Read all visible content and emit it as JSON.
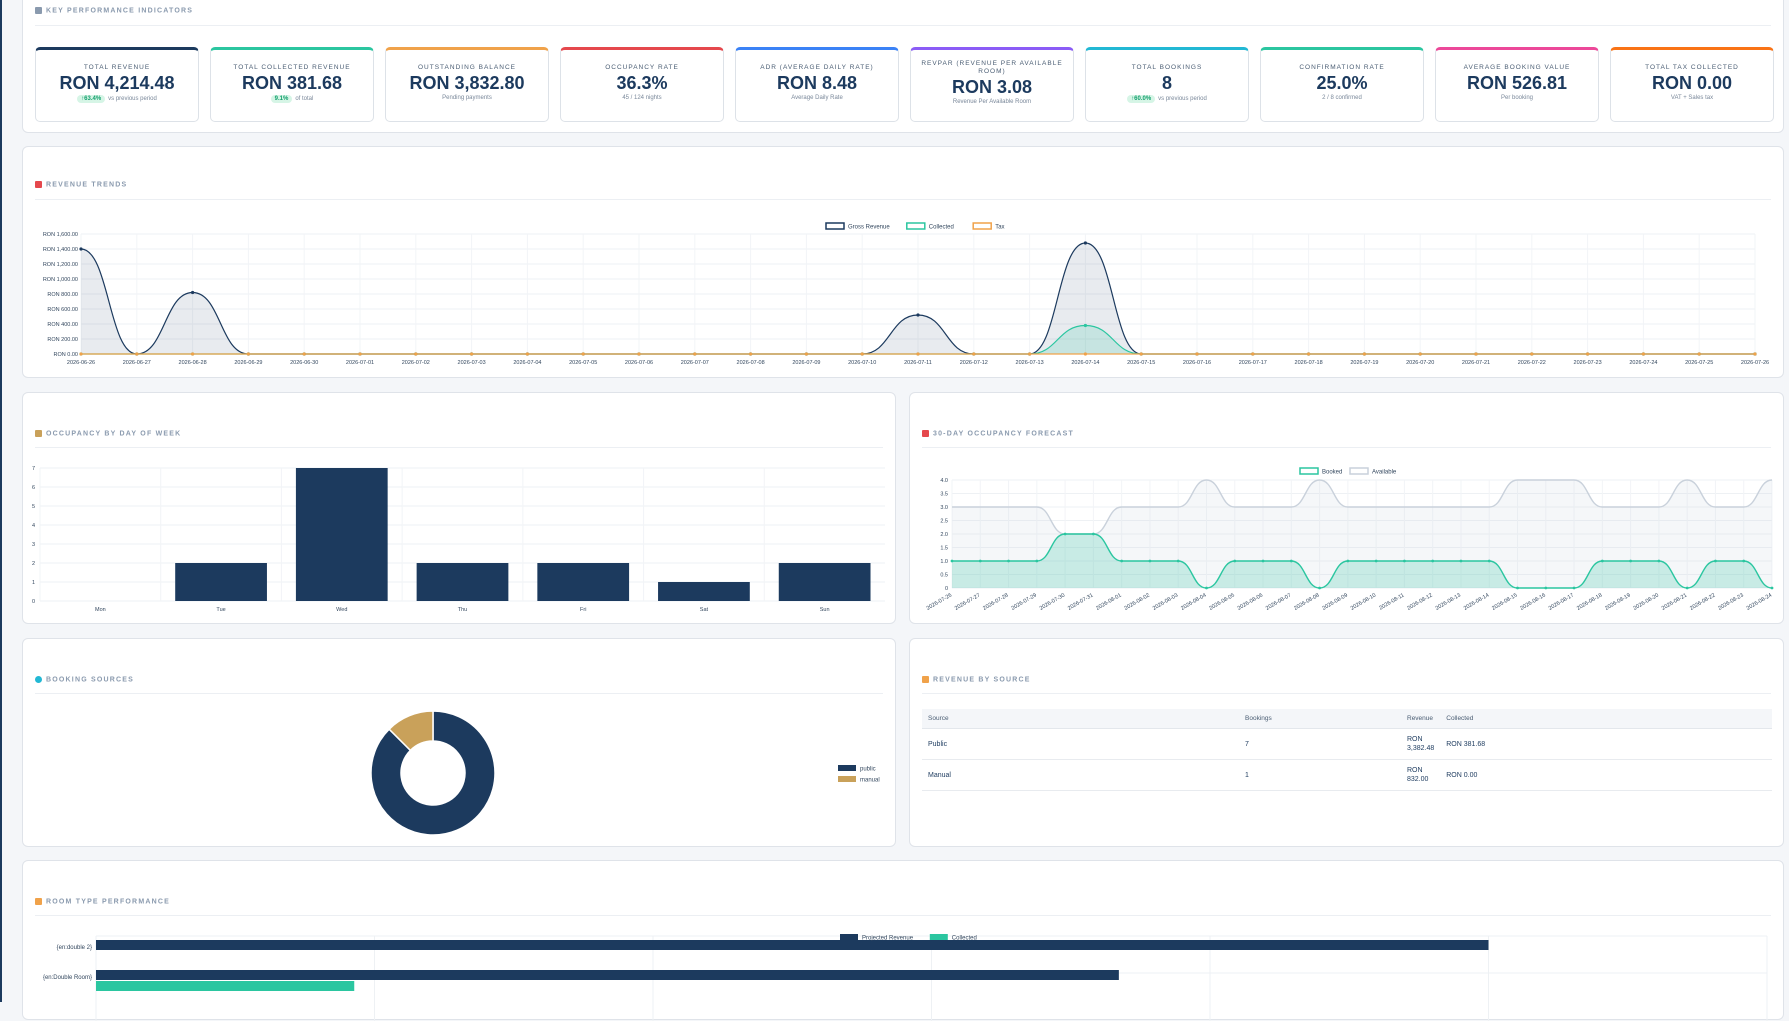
{
  "kpi_section": {
    "title": "KEY PERFORMANCE INDICATORS",
    "cards": [
      {
        "label": "TOTAL REVENUE",
        "value": "RON 4,214.48",
        "badge": "↑63.4%",
        "sub": "vs previous period",
        "color": "#1c3a5e"
      },
      {
        "label": "TOTAL COLLECTED REVENUE",
        "value": "RON 381.68",
        "badge": "9.1%",
        "sub": "of total",
        "color": "#2bc6a0"
      },
      {
        "label": "OUTSTANDING BALANCE",
        "value": "RON 3,832.80",
        "badge": "",
        "sub": "Pending payments",
        "color": "#f0a24a"
      },
      {
        "label": "OCCUPANCY RATE",
        "value": "36.3%",
        "badge": "",
        "sub": "45 / 124 nights",
        "color": "#e5484d"
      },
      {
        "label": "ADR (AVERAGE DAILY RATE)",
        "value": "RON 8.48",
        "badge": "",
        "sub": "Average Daily Rate",
        "color": "#3b82f6"
      },
      {
        "label": "REVPAR (REVENUE PER AVAILABLE ROOM)",
        "value": "RON 3.08",
        "badge": "",
        "sub": "Revenue Per Available Room",
        "color": "#8b5cf6"
      },
      {
        "label": "TOTAL BOOKINGS",
        "value": "8",
        "badge": "↑60.0%",
        "sub": "vs previous period",
        "color": "#22b8d4"
      },
      {
        "label": "CONFIRMATION RATE",
        "value": "25.0%",
        "badge": "",
        "sub": "2 / 8 confirmed",
        "color": "#2bc6a0"
      },
      {
        "label": "AVERAGE BOOKING VALUE",
        "value": "RON 526.81",
        "badge": "",
        "sub": "Per booking",
        "color": "#ec4899"
      },
      {
        "label": "TOTAL TAX COLLECTED",
        "value": "RON 0.00",
        "badge": "",
        "sub": "VAT + Sales tax",
        "color": "#f97316"
      }
    ]
  },
  "revenue_trends": {
    "title": "REVENUE TRENDS",
    "chart_data": {
      "type": "line",
      "x": [
        "2026-06-26",
        "2026-06-27",
        "2026-06-28",
        "2026-06-29",
        "2026-06-30",
        "2026-07-01",
        "2026-07-02",
        "2026-07-03",
        "2026-07-04",
        "2026-07-05",
        "2026-07-06",
        "2026-07-07",
        "2026-07-08",
        "2026-07-09",
        "2026-07-10",
        "2026-07-11",
        "2026-07-12",
        "2026-07-13",
        "2026-07-14",
        "2026-07-15",
        "2026-07-16",
        "2026-07-17",
        "2026-07-18",
        "2026-07-19",
        "2026-07-20",
        "2026-07-21",
        "2026-07-22",
        "2026-07-23",
        "2026-07-24",
        "2026-07-25",
        "2026-07-26"
      ],
      "series": [
        {
          "name": "Gross Revenue",
          "color": "#1c3a5e",
          "fill": "rgba(28,58,94,0.10)",
          "values": [
            1400,
            0,
            820,
            0,
            0,
            0,
            0,
            0,
            0,
            0,
            0,
            0,
            0,
            0,
            0,
            520,
            0,
            0,
            1480,
            0,
            0,
            0,
            0,
            0,
            0,
            0,
            0,
            0,
            0,
            0,
            0
          ]
        },
        {
          "name": "Collected",
          "color": "#2bc6a0",
          "fill": "rgba(43,198,160,0.18)",
          "values": [
            0,
            0,
            0,
            0,
            0,
            0,
            0,
            0,
            0,
            0,
            0,
            0,
            0,
            0,
            0,
            0,
            0,
            0,
            380,
            0,
            0,
            0,
            0,
            0,
            0,
            0,
            0,
            0,
            0,
            0,
            0
          ]
        },
        {
          "name": "Tax",
          "color": "#f0a24a",
          "fill": "none",
          "values": [
            0,
            0,
            0,
            0,
            0,
            0,
            0,
            0,
            0,
            0,
            0,
            0,
            0,
            0,
            0,
            0,
            0,
            0,
            0,
            0,
            0,
            0,
            0,
            0,
            0,
            0,
            0,
            0,
            0,
            0,
            0
          ]
        }
      ],
      "yticks": [
        "RON 0.00",
        "RON 200.00",
        "RON 400.00",
        "RON 600.00",
        "RON 800.00",
        "RON 1,000.00",
        "RON 1,200.00",
        "RON 1,400.00",
        "RON 1,600.00"
      ],
      "ylim": [
        0,
        1600
      ]
    }
  },
  "occupancy_dow": {
    "title": "OCCUPANCY BY DAY OF WEEK",
    "chart_data": {
      "type": "bar",
      "categories": [
        "Mon",
        "Tue",
        "Wed",
        "Thu",
        "Fri",
        "Sat",
        "Sun"
      ],
      "values": [
        0,
        2,
        7,
        2,
        2,
        1,
        2
      ],
      "ylim": [
        0,
        7
      ],
      "yticks": [
        "0",
        "1",
        "2",
        "3",
        "4",
        "5",
        "6",
        "7"
      ],
      "color": "#1c3a5e"
    }
  },
  "forecast": {
    "title": "30-DAY OCCUPANCY FORECAST",
    "chart_data": {
      "type": "area",
      "x": [
        "2026-07-26",
        "2026-07-27",
        "2026-07-28",
        "2026-07-29",
        "2026-07-30",
        "2026-07-31",
        "2026-08-01",
        "2026-08-02",
        "2026-08-03",
        "2026-08-04",
        "2026-08-05",
        "2026-08-06",
        "2026-08-07",
        "2026-08-08",
        "2026-08-09",
        "2026-08-10",
        "2026-08-11",
        "2026-08-12",
        "2026-08-13",
        "2026-08-14",
        "2026-08-15",
        "2026-08-16",
        "2026-08-17",
        "2026-08-18",
        "2026-08-19",
        "2026-08-20",
        "2026-08-21",
        "2026-08-22",
        "2026-08-23",
        "2026-08-24"
      ],
      "series": [
        {
          "name": "Booked",
          "color": "#2bc6a0",
          "values": [
            1,
            1,
            1,
            1,
            2,
            2,
            1,
            1,
            1,
            0,
            1,
            1,
            1,
            0,
            1,
            1,
            1,
            1,
            1,
            1,
            0,
            0,
            0,
            1,
            1,
            1,
            0,
            1,
            1,
            0
          ]
        },
        {
          "name": "Available",
          "color": "#c9d1db",
          "values": [
            3,
            3,
            3,
            3,
            2,
            2,
            3,
            3,
            3,
            4,
            3,
            3,
            3,
            4,
            3,
            3,
            3,
            3,
            3,
            3,
            4,
            4,
            4,
            3,
            3,
            3,
            4,
            3,
            3,
            4
          ]
        }
      ],
      "yticks": [
        "0",
        "0.5",
        "1.0",
        "1.5",
        "2.0",
        "2.5",
        "3.0",
        "3.5",
        "4.0"
      ],
      "ylim": [
        0,
        4
      ]
    }
  },
  "booking_sources": {
    "title": "BOOKING SOURCES",
    "chart_data": {
      "type": "pie",
      "categories": [
        "public",
        "manual"
      ],
      "values": [
        7,
        1
      ],
      "colors": [
        "#1c3a5e",
        "#c9a15a"
      ]
    }
  },
  "revenue_by_source": {
    "title": "REVENUE BY SOURCE",
    "columns": [
      "Source",
      "Bookings",
      "Revenue",
      "Collected"
    ],
    "rows": [
      {
        "source": "Public",
        "bookings": "7",
        "revenue": "RON 3,382.48",
        "collected": "RON 381.68"
      },
      {
        "source": "Manual",
        "bookings": "1",
        "revenue": "RON 832.00",
        "collected": "RON 0.00"
      }
    ]
  },
  "room_type": {
    "title": "ROOM TYPE PERFORMANCE",
    "chart_data": {
      "type": "bar",
      "orientation": "horizontal",
      "categories": [
        "{en:double 2}",
        "{en:Double Room}"
      ],
      "series": [
        {
          "name": "Projected Revenue",
          "color": "#1c3a5e",
          "values": [
            2750,
            2020
          ]
        },
        {
          "name": "Collected",
          "color": "#2bc6a0",
          "values": [
            0,
            510
          ]
        }
      ],
      "xlim": [
        0,
        3300
      ]
    }
  }
}
